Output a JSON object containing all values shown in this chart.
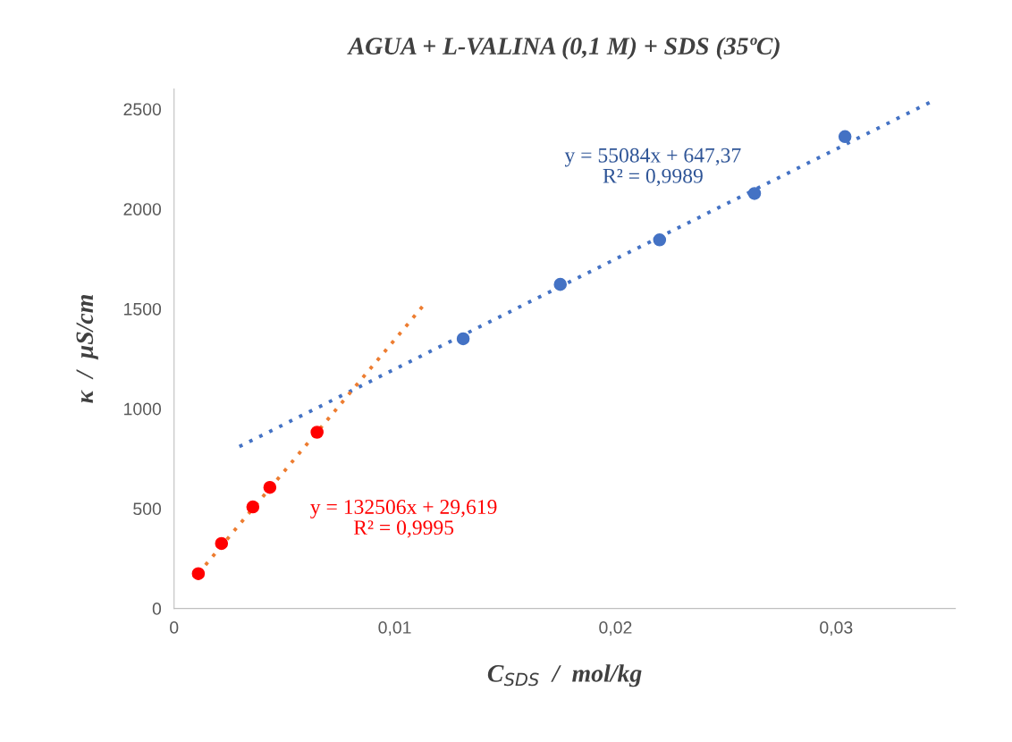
{
  "chart_data": {
    "type": "scatter",
    "title": "AGUA + L-VALINA (0,1 M) + SDS (35ºC)",
    "xlabel": "C$_{SDS}$  /  mol/kg",
    "ylabel": "κ  /  μS/cm",
    "series": [
      {
        "type": "line",
        "color": "#4472c4",
        "line_style": "dotted",
        "marker": "none",
        "x": [
          0.00296,
          0.0344
        ],
        "values": [
          810,
          2542
        ]
      },
      {
        "type": "line",
        "color": "#ed7d31",
        "line_style": "dotted",
        "marker": "none",
        "x": [
          0.0011,
          0.0114
        ],
        "values": [
          175,
          1530
        ]
      },
      {
        "color": "#4472c4",
        "marker": "circle",
        "x": [
          0.0131,
          0.0175,
          0.022,
          0.0263,
          0.0304
        ],
        "values": [
          1350,
          1622,
          1845,
          2077,
          2362
        ]
      },
      {
        "color": "#ff0000",
        "marker": "circle",
        "x": [
          0.0011,
          0.00215,
          0.00357,
          0.00434,
          0.00648
        ],
        "values": [
          174,
          325,
          508,
          606,
          882
        ]
      }
    ],
    "annotations": [
      "y = 55084x + 647,37\nR² = 0,9989",
      "y = 132506x + 29,619\nR² = 0,9995"
    ],
    "xlim": [
      0,
      0.0354
    ],
    "ylim": [
      0,
      2600
    ],
    "xticks": [
      0,
      {
        "value": 0.01,
        "label": "0,01"
      },
      {
        "value": 0.02,
        "label": "0,02"
      },
      {
        "value": 0.03,
        "label": "0,03"
      }
    ],
    "yticks": [
      0,
      500,
      1000,
      1500,
      2000,
      2500
    ],
    "grid": false,
    "legend": false
  }
}
